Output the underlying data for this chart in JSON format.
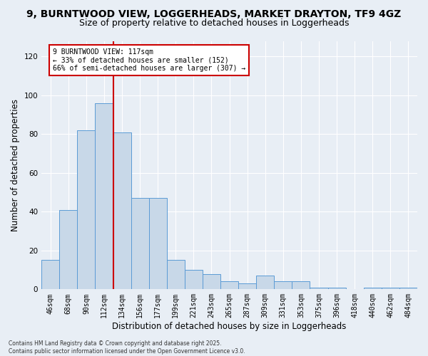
{
  "title1": "9, BURNTWOOD VIEW, LOGGERHEADS, MARKET DRAYTON, TF9 4GZ",
  "title2": "Size of property relative to detached houses in Loggerheads",
  "xlabel": "Distribution of detached houses by size in Loggerheads",
  "ylabel": "Number of detached properties",
  "categories": [
    "46sqm",
    "68sqm",
    "90sqm",
    "112sqm",
    "134sqm",
    "156sqm",
    "177sqm",
    "199sqm",
    "221sqm",
    "243sqm",
    "265sqm",
    "287sqm",
    "309sqm",
    "331sqm",
    "353sqm",
    "375sqm",
    "396sqm",
    "418sqm",
    "440sqm",
    "462sqm",
    "484sqm"
  ],
  "values": [
    15,
    41,
    82,
    96,
    81,
    47,
    47,
    15,
    10,
    8,
    4,
    3,
    7,
    4,
    4,
    1,
    1,
    0,
    1,
    1,
    1
  ],
  "bar_color": "#c8d8e8",
  "bar_edge_color": "#5b9bd5",
  "annotation_text": "9 BURNTWOOD VIEW: 117sqm\n← 33% of detached houses are smaller (152)\n66% of semi-detached houses are larger (307) →",
  "annotation_box_color": "#ffffff",
  "annotation_box_edge_color": "#cc0000",
  "vline_color": "#cc0000",
  "vline_x_index": 3,
  "ylim": [
    0,
    128
  ],
  "yticks": [
    0,
    20,
    40,
    60,
    80,
    100,
    120
  ],
  "bg_color": "#e8eef5",
  "fig_bg_color": "#e8eef5",
  "footer_text": "Contains HM Land Registry data © Crown copyright and database right 2025.\nContains public sector information licensed under the Open Government Licence v3.0.",
  "title1_fontsize": 10,
  "title2_fontsize": 9,
  "tick_fontsize": 7,
  "label_fontsize": 8.5
}
